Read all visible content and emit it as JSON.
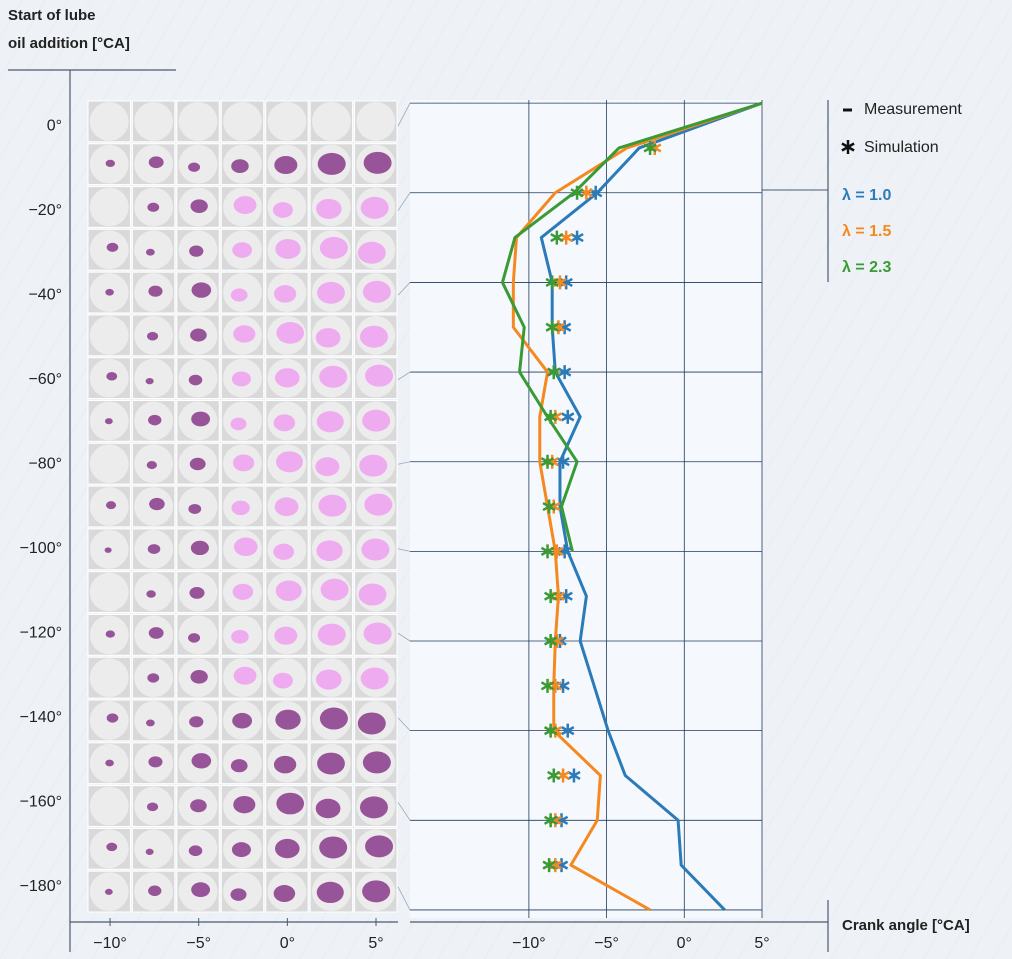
{
  "chart_data": {
    "type": "line",
    "ylabel": [
      "Start of lube",
      "oil addition [°CA]"
    ],
    "xlabel": "Crank angle [°CA]",
    "y": [
      0,
      -10,
      -20,
      -30,
      -40,
      -50,
      -60,
      -70,
      -80,
      -90,
      -100,
      -110,
      -120,
      -130,
      -140,
      -150,
      -160,
      -170,
      -180
    ],
    "yticks": [
      {
        "value": 0,
        "label": "0°"
      },
      {
        "value": -20,
        "label": "−20°"
      },
      {
        "value": -40,
        "label": "−40°"
      },
      {
        "value": -60,
        "label": "−60°"
      },
      {
        "value": -80,
        "label": "−80°"
      },
      {
        "value": -100,
        "label": "−100°"
      },
      {
        "value": -120,
        "label": "−120°"
      },
      {
        "value": -140,
        "label": "−140°"
      },
      {
        "value": -160,
        "label": "−160°"
      },
      {
        "value": -180,
        "label": "−180°"
      }
    ],
    "ylim": [
      -181.8,
      0.7
    ],
    "xlim": [
      -17.65,
      5
    ],
    "xticks": [
      {
        "value": -10,
        "label": "−10°"
      },
      {
        "value": -5,
        "label": "−5°"
      },
      {
        "value": 0,
        "label": "0°"
      },
      {
        "value": 5,
        "label": "5°"
      }
    ],
    "measurement_label": "Measurement",
    "simulation_label": "Simulation",
    "series": [
      {
        "name": "λ = 1.0",
        "color": "#2b7bb9",
        "values": [
          5,
          -2.9,
          -5.6,
          -9.2,
          -8.5,
          -8.5,
          -8.3,
          -6.7,
          -8.0,
          -8.0,
          -7.5,
          -6.3,
          -6.7,
          -5.8,
          -4.9,
          -3.8,
          -0.4,
          -0.2,
          2.6
        ],
        "simulation": [
          null,
          null,
          -5.7,
          -6.9,
          -7.6,
          -7.7,
          -7.7,
          -7.5,
          -7.8,
          null,
          -7.7,
          -7.6,
          -8.0,
          -7.8,
          -7.5,
          -7.1,
          -7.9,
          -7.9,
          null
        ]
      },
      {
        "name": "λ = 1.5",
        "color": "#f5891f",
        "values": [
          5,
          -3.7,
          -8.3,
          -10.8,
          -11.0,
          -11.0,
          -8.8,
          -9.3,
          -9.3,
          -8.8,
          -8.3,
          -8.1,
          -8.3,
          -8.4,
          -8.4,
          -5.4,
          -5.6,
          -7.3,
          -2.2
        ],
        "simulation": [
          null,
          -1.9,
          -6.3,
          -7.6,
          -8.0,
          -8.1,
          -8.4,
          -8.3,
          -8.5,
          -8.4,
          -8.2,
          -8.1,
          -8.2,
          -8.3,
          -8.3,
          -7.8,
          -8.3,
          -8.3,
          null
        ]
      },
      {
        "name": "λ = 2.3",
        "color": "#3a9a35",
        "values": [
          5,
          -4.2,
          -7.1,
          -10.9,
          -11.7,
          -10.3,
          -10.6,
          -8.8,
          -6.9,
          -7.9,
          -7.2,
          null,
          null,
          null,
          null,
          null,
          null,
          null,
          null
        ],
        "simulation": [
          null,
          -2.2,
          -6.9,
          -8.2,
          -8.5,
          -8.5,
          -8.4,
          -8.6,
          -8.8,
          -8.7,
          -8.8,
          -8.6,
          -8.6,
          -8.8,
          -8.6,
          -8.4,
          -8.6,
          -8.7,
          null
        ]
      }
    ],
    "image_grid": {
      "xlim": [
        -11.3,
        6.24
      ],
      "ylim": [
        6.2,
        -186.2
      ]
    }
  }
}
